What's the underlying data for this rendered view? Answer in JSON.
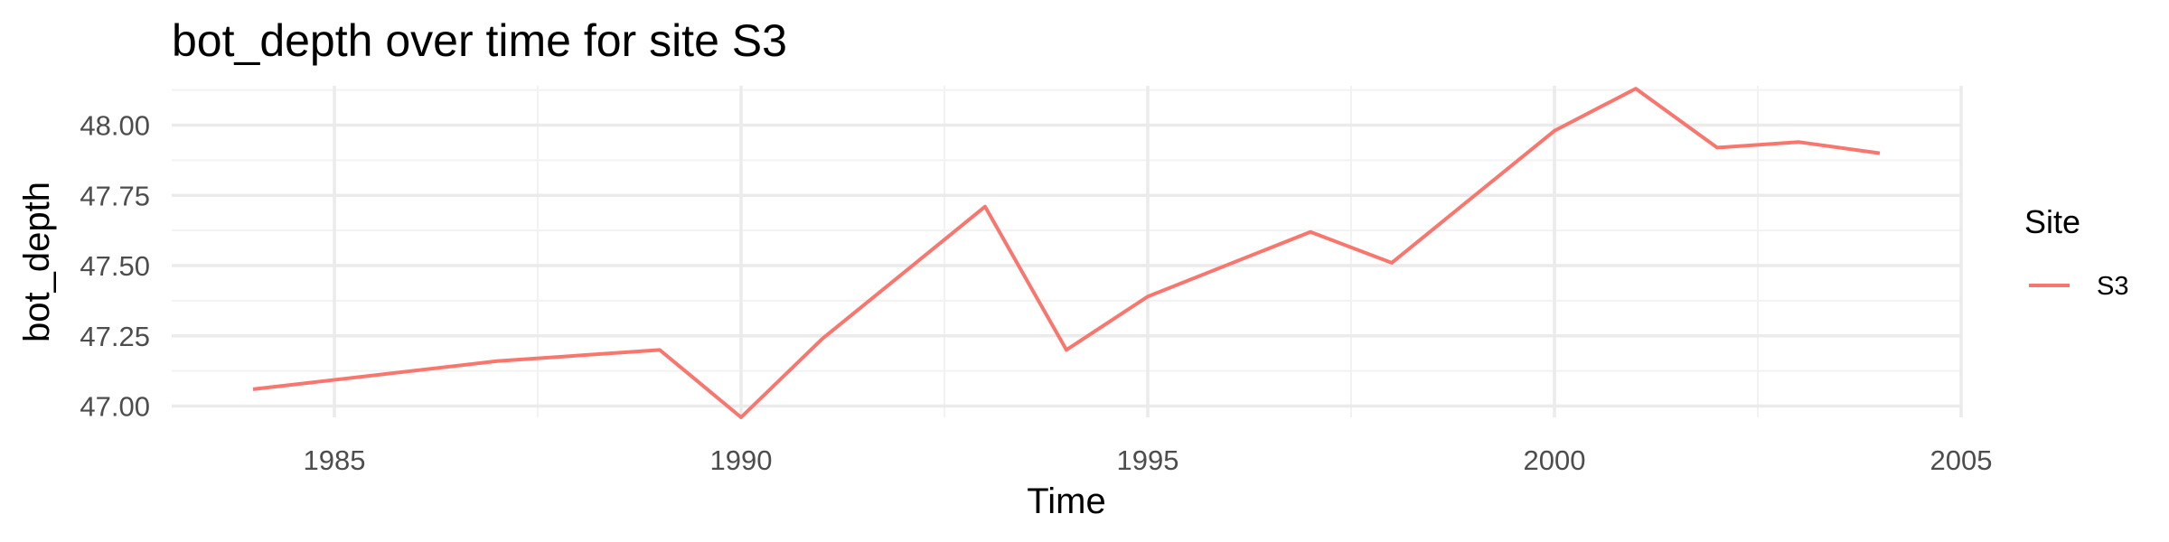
{
  "chart_data": {
    "type": "line",
    "title": "bot_depth over time for site S3",
    "xlabel": "Time",
    "ylabel": "bot_depth",
    "xlim": [
      1983,
      2005
    ],
    "ylim": [
      46.96,
      48.14
    ],
    "x_ticks": [
      1985,
      1990,
      1995,
      2000,
      2005
    ],
    "y_ticks": [
      47.0,
      47.25,
      47.5,
      47.75,
      48.0
    ],
    "x_tick_labels": [
      "1985",
      "1990",
      "1995",
      "2000",
      "2005"
    ],
    "y_tick_labels": [
      "47.00",
      "47.25",
      "47.50",
      "47.75",
      "48.00"
    ],
    "grid": true,
    "legend": {
      "title": "Site",
      "position": "right"
    },
    "series": [
      {
        "name": "S3",
        "color": "#f8766d",
        "x": [
          1984,
          1987,
          1989,
          1990,
          1991,
          1993,
          1994,
          1995,
          1997,
          1998,
          2000,
          2001,
          2002,
          2003,
          2004
        ],
        "values": [
          47.06,
          47.16,
          47.2,
          46.96,
          47.24,
          47.71,
          47.2,
          47.39,
          47.62,
          47.51,
          47.98,
          48.13,
          47.92,
          47.94,
          47.9
        ]
      }
    ]
  }
}
